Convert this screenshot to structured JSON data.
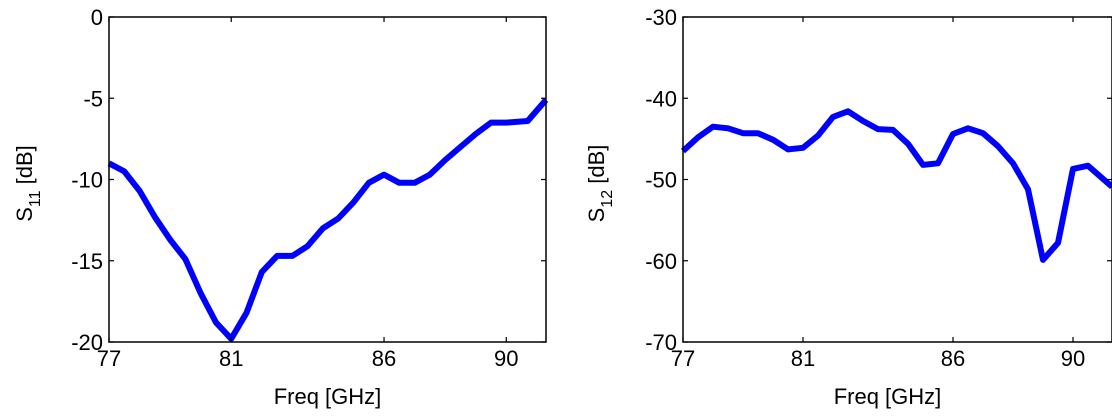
{
  "chart_data": [
    {
      "type": "line",
      "xlabel": "Freq [GHz]",
      "ylabel": {
        "base": "S",
        "sub": "11",
        "unit": " [dB]"
      },
      "xlim": [
        77,
        91.3
      ],
      "ylim": [
        -20,
        0
      ],
      "xticks": [
        77,
        81,
        86,
        90
      ],
      "yticks": [
        0,
        -5,
        -10,
        -15,
        -20
      ],
      "grid": false,
      "color": "#0000ff",
      "series": [
        {
          "x": [
            77,
            77.5,
            78,
            78.5,
            79,
            79.5,
            80,
            80.5,
            81,
            81.5,
            82,
            82.5,
            83,
            83.5,
            84,
            84.5,
            85,
            85.5,
            86,
            86.5,
            87,
            87.5,
            88,
            88.5,
            89,
            89.5,
            90,
            90.7,
            91.3
          ],
          "y": [
            -9,
            -9.5,
            -10.7,
            -12.3,
            -13.7,
            -14.9,
            -17,
            -18.8,
            -19.8,
            -18.2,
            -15.7,
            -14.7,
            -14.7,
            -14.1,
            -13,
            -12.4,
            -11.4,
            -10.2,
            -9.7,
            -10.2,
            -10.2,
            -9.7,
            -8.8,
            -8,
            -7.2,
            -6.5,
            -6.5,
            -6.4,
            -5.1
          ]
        }
      ]
    },
    {
      "type": "line",
      "xlabel": "Freq [GHz]",
      "ylabel": {
        "base": "S",
        "sub": "12",
        "unit": " [dB]"
      },
      "xlim": [
        77,
        91.3
      ],
      "ylim": [
        -70,
        -30
      ],
      "xticks": [
        77,
        81,
        86,
        90
      ],
      "yticks": [
        -30,
        -40,
        -50,
        -60,
        -70
      ],
      "grid": false,
      "color": "#0000ff",
      "series": [
        {
          "x": [
            77,
            77.5,
            78,
            78.5,
            79,
            79.5,
            80,
            80.5,
            81,
            81.5,
            82,
            82.5,
            83,
            83.5,
            84,
            84.5,
            85,
            85.5,
            86,
            86.5,
            87,
            87.5,
            88,
            88.5,
            89,
            89.5,
            90,
            90.5,
            91.3
          ],
          "y": [
            -46.5,
            -44.8,
            -43.5,
            -43.7,
            -44.3,
            -44.3,
            -45.1,
            -46.3,
            -46.1,
            -44.6,
            -42.3,
            -41.6,
            -42.8,
            -43.8,
            -43.9,
            -45.6,
            -48.2,
            -48,
            -44.4,
            -43.7,
            -44.3,
            -45.9,
            -48,
            -51.2,
            -59.9,
            -57.8,
            -48.7,
            -48.3,
            -50.9
          ]
        }
      ]
    }
  ]
}
